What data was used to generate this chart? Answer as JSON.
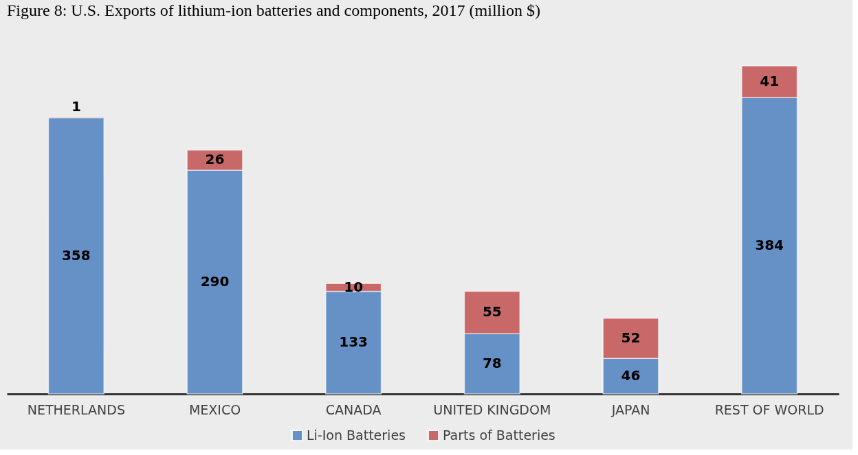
{
  "chart_data": {
    "type": "bar",
    "title": "Figure 8: U.S. Exports of lithium-ion batteries and components, 2017 (million $)",
    "categories": [
      "NETHERLANDS",
      "MEXICO",
      "CANADA",
      "UNITED KINGDOM",
      "JAPAN",
      "REST OF WORLD"
    ],
    "stacked": true,
    "data_labels": true,
    "legend": "bottom",
    "series": [
      {
        "name": "Li-Ion Batteries",
        "color": "#6691c6",
        "values": [
          358,
          290,
          133,
          78,
          46,
          384
        ]
      },
      {
        "name": "Parts of Batteries",
        "color": "#c96868",
        "values": [
          1,
          26,
          10,
          55,
          52,
          41
        ]
      }
    ]
  }
}
